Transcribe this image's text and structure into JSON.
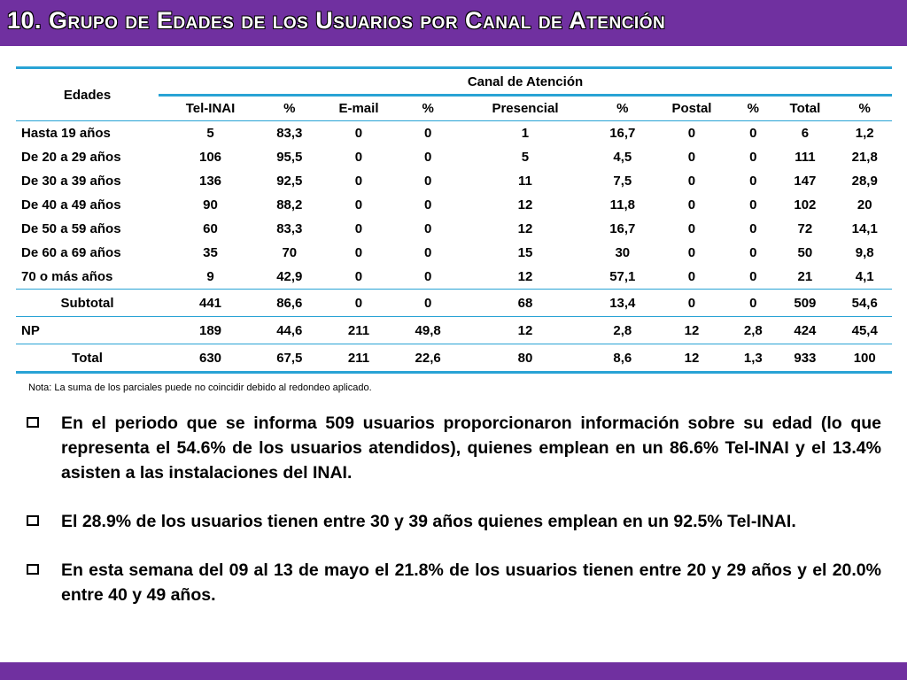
{
  "title": "10. Grupo de  Edades de los Usuarios por Canal de Atención",
  "table": {
    "age_header": "Edades",
    "group_header": "Canal de Atención",
    "columns": [
      "Tel-INAI",
      "%",
      "E-mail",
      "%",
      "Presencial",
      "%",
      "Postal",
      "%",
      "Total",
      "%"
    ],
    "rows": [
      {
        "label": "Hasta 19 años",
        "values": [
          "5",
          "83,3",
          "0",
          "0",
          "1",
          "16,7",
          "0",
          "0",
          "6",
          "1,2"
        ]
      },
      {
        "label": "De 20 a 29 años",
        "values": [
          "106",
          "95,5",
          "0",
          "0",
          "5",
          "4,5",
          "0",
          "0",
          "111",
          "21,8"
        ]
      },
      {
        "label": "De 30 a 39 años",
        "values": [
          "136",
          "92,5",
          "0",
          "0",
          "11",
          "7,5",
          "0",
          "0",
          "147",
          "28,9"
        ]
      },
      {
        "label": "De 40 a 49 años",
        "values": [
          "90",
          "88,2",
          "0",
          "0",
          "12",
          "11,8",
          "0",
          "0",
          "102",
          "20"
        ]
      },
      {
        "label": "De 50 a 59 años",
        "values": [
          "60",
          "83,3",
          "0",
          "0",
          "12",
          "16,7",
          "0",
          "0",
          "72",
          "14,1"
        ]
      },
      {
        "label": "De 60 a 69 años",
        "values": [
          "35",
          "70",
          "0",
          "0",
          "15",
          "30",
          "0",
          "0",
          "50",
          "9,8"
        ]
      },
      {
        "label": "70 o más años",
        "values": [
          "9",
          "42,9",
          "0",
          "0",
          "12",
          "57,1",
          "0",
          "0",
          "21",
          "4,1"
        ]
      }
    ],
    "subtotal": {
      "label": "Subtotal",
      "values": [
        "441",
        "86,6",
        "0",
        "0",
        "68",
        "13,4",
        "0",
        "0",
        "509",
        "54,6"
      ]
    },
    "np": {
      "label": "NP",
      "values": [
        "189",
        "44,6",
        "211",
        "49,8",
        "12",
        "2,8",
        "12",
        "2,8",
        "424",
        "45,4"
      ]
    },
    "total": {
      "label": "Total",
      "values": [
        "630",
        "67,5",
        "211",
        "22,6",
        "80",
        "8,6",
        "12",
        "1,3",
        "933",
        "100"
      ]
    }
  },
  "note": "Nota: La suma de los parciales puede no coincidir debido al redondeo aplicado.",
  "bullets": [
    "En el periodo que se informa 509 usuarios proporcionaron información sobre su edad (lo que representa el 54.6% de los usuarios atendidos),  quienes emplean en un 86.6% Tel-INAI y el 13.4% asisten a las instalaciones del INAI.",
    "El 28.9% de los usuarios tienen entre 30 y 39 años quienes emplean en un 92.5% Tel-INAI.",
    "En esta semana del 09 al 13 de mayo el 21.8% de los usuarios tienen entre 20 y 29 años y el 20.0% entre 40 y 49 años."
  ]
}
